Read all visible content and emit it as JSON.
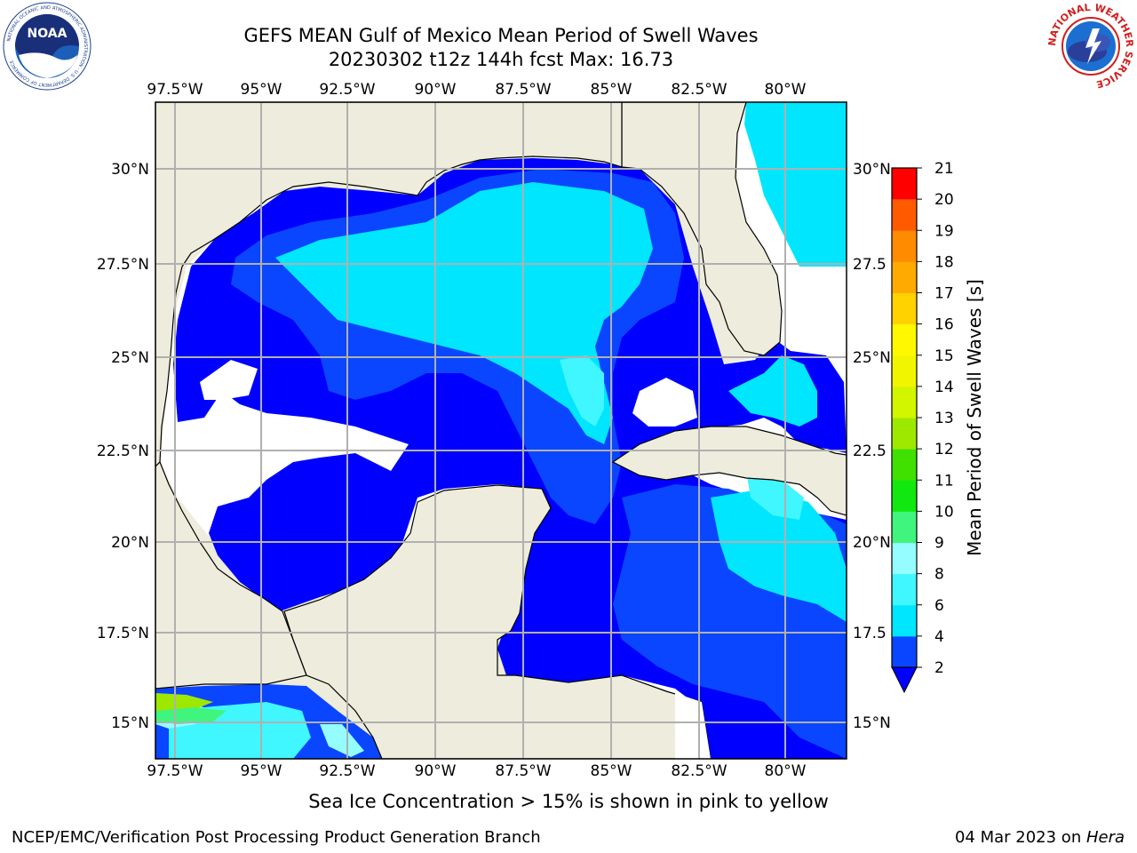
{
  "title": {
    "line1": "GEFS MEAN Gulf of Mexico Mean Period of Swell Waves",
    "line2": "20230302 t12z 144h fcst   Max: 16.73"
  },
  "map": {
    "lon_labels": [
      "97.5°W",
      "95°W",
      "92.5°W",
      "90°W",
      "87.5°W",
      "85°W",
      "82.5°W",
      "80°W"
    ],
    "lat_labels_left": [
      "30°N",
      "27.5°N",
      "25°N",
      "22.5°N",
      "20°N",
      "17.5°N",
      "15°N"
    ],
    "lat_labels_right": [
      "30°N",
      "27.5",
      "25°N",
      "22.5",
      "20°N",
      "17.5",
      "15°N"
    ],
    "land_color": "#eeecdc",
    "nodata_color": "#ffffff",
    "grid_color": "#b0b0b0"
  },
  "colorbar": {
    "label": "Mean Period of Swell Waves [s]",
    "ticks": [
      "2",
      "4",
      "6",
      "8",
      "9",
      "10",
      "11",
      "12",
      "13",
      "14",
      "15",
      "16",
      "17",
      "18",
      "19",
      "20",
      "21"
    ],
    "colors": [
      "#0a46ff",
      "#00e6ff",
      "#40f6ff",
      "#95fdff",
      "#3ff57d",
      "#10e810",
      "#40e000",
      "#9ee800",
      "#d2f500",
      "#f2f500",
      "#fff800",
      "#ffd200",
      "#ffaa00",
      "#ff8c00",
      "#ff5a00",
      "#ff3c00",
      "#ff0000"
    ],
    "under_color": "#0000ff"
  },
  "ice_note": "Sea Ice Concentration > 15% is shown in pink to yellow",
  "footer": {
    "left": "NCEP/EMC/Verification Post Processing Product Generation Branch",
    "right_date": "04 Mar 2023 on ",
    "right_machine": "Hera"
  },
  "logos": {
    "noaa_text": "NOAA",
    "noaa_ring": "NATIONAL OCEANIC AND ATMOSPHERIC ADMINISTRATION · U.S. DEPARTMENT OF COMMERCE",
    "nws_ring": "NATIONAL WEATHER SERVICE"
  }
}
